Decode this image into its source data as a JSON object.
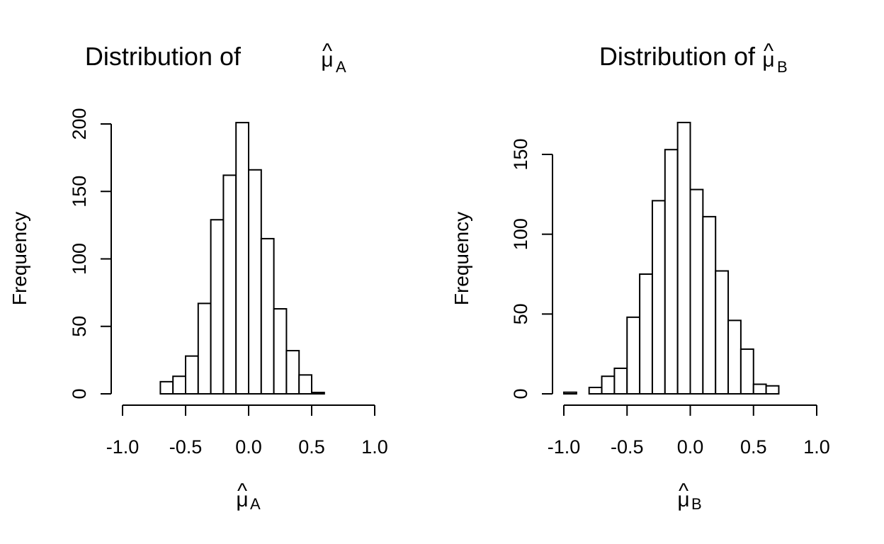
{
  "chart_data": [
    {
      "type": "bar",
      "title_prefix": "Distribution of ",
      "symbol": "μ",
      "hat": "^",
      "subscript": "A",
      "xlabel_symbol": "μ",
      "xlabel_subscript": "A",
      "ylabel": "Frequency",
      "bin_edges": [
        -1.0,
        -0.9,
        -0.8,
        -0.7,
        -0.6,
        -0.5,
        -0.4,
        -0.3,
        -0.2,
        -0.1,
        0.0,
        0.1,
        0.2,
        0.3,
        0.4,
        0.5,
        0.6,
        0.7,
        0.8,
        0.9,
        1.0
      ],
      "values": [
        0,
        0,
        0,
        9,
        13,
        28,
        67,
        129,
        162,
        201,
        166,
        115,
        63,
        32,
        14,
        1,
        0,
        0,
        0,
        0
      ],
      "xlim": [
        -1.0,
        1.0
      ],
      "ylim": [
        0,
        200
      ],
      "xticks": [
        -1.0,
        -0.5,
        0.0,
        0.5,
        1.0
      ],
      "xtick_labels": [
        "-1.0",
        "-0.5",
        "0.0",
        "0.5",
        "1.0"
      ],
      "yticks": [
        0,
        50,
        100,
        150,
        200
      ],
      "ytick_labels": [
        "0",
        "50",
        "100",
        "150",
        "200"
      ],
      "grid": false
    },
    {
      "type": "bar",
      "title_prefix": "Distribution of ",
      "symbol": "μ",
      "hat": "^",
      "subscript": "B",
      "xlabel_symbol": "μ",
      "xlabel_subscript": "B",
      "ylabel": "Frequency",
      "bin_edges": [
        -1.0,
        -0.9,
        -0.8,
        -0.7,
        -0.6,
        -0.5,
        -0.4,
        -0.3,
        -0.2,
        -0.1,
        0.0,
        0.1,
        0.2,
        0.3,
        0.4,
        0.5,
        0.6,
        0.7,
        0.8,
        0.9,
        1.0
      ],
      "values": [
        1,
        0,
        4,
        11,
        16,
        48,
        75,
        121,
        153,
        170,
        128,
        111,
        77,
        46,
        28,
        6,
        5,
        0,
        0,
        0
      ],
      "xlim": [
        -1.0,
        1.0
      ],
      "ylim": [
        0,
        170
      ],
      "xticks": [
        -1.0,
        -0.5,
        0.0,
        0.5,
        1.0
      ],
      "xtick_labels": [
        "-1.0",
        "-0.5",
        "0.0",
        "0.5",
        "1.0"
      ],
      "yticks": [
        0,
        50,
        100,
        150
      ],
      "ytick_labels": [
        "0",
        "50",
        "100",
        "150"
      ],
      "grid": false
    }
  ]
}
